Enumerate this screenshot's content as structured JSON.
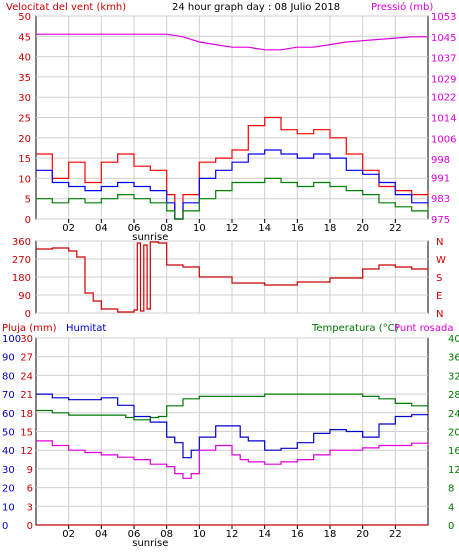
{
  "chart_data": [
    {
      "type": "line",
      "panel": "wind-pressure",
      "title": "24 hour graph day : 08 Julio 2018",
      "ylabel_left": "Velocitat del vent (kmh)",
      "ylabel_right": "Pressió (mb)",
      "x_tick_labels": [
        "02",
        "04",
        "06",
        "08",
        "10",
        "12",
        "14",
        "16",
        "18",
        "20",
        "22"
      ],
      "x_annotation": "sunrise",
      "ylim_left": [
        0,
        50
      ],
      "y_ticks_left": [
        0,
        5,
        10,
        15,
        20,
        25,
        30,
        35,
        40,
        45,
        50
      ],
      "ylim_right": [
        975,
        1053
      ],
      "y_ticks_right": [
        975,
        983,
        991,
        998,
        1006,
        1014,
        1022,
        1029,
        1037,
        1045,
        1053
      ],
      "grid": true,
      "series": [
        {
          "key": "gust",
          "axis": "left",
          "color": "#ff0000",
          "x": [
            0,
            1,
            2,
            3,
            4,
            5,
            6,
            7,
            8,
            8.5,
            9,
            10,
            11,
            12,
            13,
            14,
            15,
            16,
            17,
            18,
            19,
            20,
            21,
            22,
            23,
            24
          ],
          "values": [
            16,
            10,
            14,
            9,
            14,
            16,
            13,
            12,
            6,
            0,
            6,
            14,
            15,
            17,
            23,
            25,
            22,
            21,
            22,
            20,
            16,
            12,
            8,
            7,
            6,
            7
          ]
        },
        {
          "key": "average",
          "axis": "left",
          "color": "#0000ff",
          "x": [
            0,
            1,
            2,
            3,
            4,
            5,
            6,
            7,
            8,
            8.5,
            9,
            10,
            11,
            12,
            13,
            14,
            15,
            16,
            17,
            18,
            19,
            20,
            21,
            22,
            23,
            24
          ],
          "values": [
            12,
            9,
            8,
            7,
            8,
            9,
            8,
            7,
            4,
            0,
            4,
            10,
            12,
            14,
            16,
            17,
            16,
            15,
            16,
            15,
            12,
            11,
            9,
            6,
            4,
            5
          ]
        },
        {
          "key": "low",
          "axis": "left",
          "color": "#008000",
          "x": [
            0,
            1,
            2,
            3,
            4,
            5,
            6,
            7,
            8,
            8.5,
            9,
            10,
            11,
            12,
            13,
            14,
            15,
            16,
            17,
            18,
            19,
            20,
            21,
            22,
            23,
            24
          ],
          "values": [
            5,
            4,
            5,
            4,
            5,
            6,
            5,
            4,
            2,
            0,
            2,
            5,
            7,
            9,
            9,
            10,
            9,
            8,
            9,
            8,
            7,
            6,
            4,
            3,
            2,
            3
          ]
        },
        {
          "key": "pressure",
          "axis": "right",
          "color": "#dd00dd",
          "x": [
            0,
            2,
            4,
            6,
            8,
            9,
            10,
            11,
            12,
            13,
            14,
            15,
            16,
            17,
            18,
            19,
            20,
            21,
            22,
            23,
            24
          ],
          "values": [
            1046,
            1046,
            1046,
            1046,
            1046,
            1045,
            1043,
            1042,
            1041,
            1041,
            1040,
            1040,
            1041,
            1041,
            1042,
            1043,
            1043.5,
            1044,
            1044.5,
            1045,
            1045
          ]
        }
      ]
    },
    {
      "type": "line",
      "panel": "wind-direction",
      "y_ticks": [
        0,
        90,
        180,
        270,
        360
      ],
      "ylim": [
        0,
        360
      ],
      "compass_labels": [
        "N",
        "W",
        "S",
        "E",
        "N"
      ],
      "grid": true,
      "series": [
        {
          "key": "direction",
          "color": "#cc0000",
          "x": [
            0,
            1,
            2,
            2.5,
            3,
            3.5,
            4,
            5,
            6,
            6.2,
            6.4,
            6.6,
            6.8,
            7,
            7.5,
            8,
            9,
            10,
            12,
            14,
            16,
            18,
            20,
            21,
            22,
            23,
            24
          ],
          "values": [
            320,
            325,
            310,
            280,
            100,
            60,
            20,
            5,
            15,
            350,
            10,
            340,
            20,
            355,
            350,
            240,
            230,
            180,
            150,
            140,
            155,
            175,
            220,
            240,
            230,
            220,
            225
          ]
        }
      ]
    },
    {
      "type": "line",
      "panel": "rain-humidity-temperature",
      "ylabel_left_1": "Pluja (mm)",
      "ylabel_left_2": "Humitat",
      "ylabel_right": "Temperatura (°C)",
      "ylabel_right_2": "Punt rosada",
      "x_tick_labels": [
        "02",
        "04",
        "06",
        "08",
        "10",
        "12",
        "14",
        "16",
        "18",
        "20",
        "22"
      ],
      "x_annotation": "sunrise",
      "ylim_rain": [
        0,
        30
      ],
      "y_ticks_rain": [
        0,
        3,
        6,
        9,
        12,
        15,
        18,
        21,
        24,
        27,
        30
      ],
      "ylim_humidity": [
        0,
        100
      ],
      "y_ticks_humidity": [
        0,
        10,
        20,
        30,
        40,
        50,
        60,
        70,
        80,
        90,
        100
      ],
      "ylim_temperature": [
        0,
        40
      ],
      "y_ticks_temperature": [
        0,
        4,
        8,
        12,
        16,
        20,
        24,
        28,
        32,
        36,
        40
      ],
      "grid": true,
      "series": [
        {
          "key": "humidity",
          "axis": "humidity",
          "color": "#0000cc",
          "x": [
            0,
            1,
            2,
            3,
            4,
            5,
            6,
            7,
            8,
            8.5,
            9,
            9.5,
            10,
            11,
            12,
            12.5,
            13,
            14,
            15,
            16,
            17,
            18,
            19,
            20,
            21,
            22,
            23,
            24
          ],
          "values": [
            70,
            68,
            67,
            67,
            68,
            64,
            58,
            55,
            47,
            44,
            36,
            40,
            47,
            53,
            53,
            47,
            45,
            40,
            41,
            44,
            49,
            51,
            50,
            47,
            54,
            58,
            59,
            59
          ]
        },
        {
          "key": "temperature",
          "axis": "temperature",
          "color": "#007700",
          "x": [
            0,
            1,
            2,
            3,
            4,
            5,
            5.5,
            6,
            7,
            7.5,
            8,
            9,
            10,
            12,
            14,
            16,
            18,
            20,
            21,
            22,
            23,
            24
          ],
          "values": [
            24.5,
            24,
            23.5,
            23.5,
            23.5,
            23.5,
            23,
            22.5,
            23,
            23.2,
            25.5,
            27,
            27.5,
            27.5,
            28,
            28,
            28,
            27.5,
            27,
            26,
            25.5,
            25.5
          ]
        },
        {
          "key": "dewpoint",
          "axis": "temperature",
          "color": "#dd00dd",
          "x": [
            0,
            1,
            2,
            3,
            4,
            5,
            6,
            7,
            8,
            8.5,
            9,
            9.5,
            10,
            11,
            12,
            12.5,
            13,
            14,
            15,
            16,
            17,
            18,
            19,
            20,
            21,
            22,
            23,
            24
          ],
          "values": [
            18,
            17,
            16,
            15.5,
            15,
            14.5,
            14,
            13,
            12.5,
            11,
            10,
            11,
            16,
            17,
            15,
            14,
            13.5,
            13,
            13.5,
            14,
            15,
            16,
            16,
            16.5,
            17,
            17,
            17.5,
            17
          ]
        },
        {
          "key": "rain",
          "axis": "rain",
          "color": "#cc0000",
          "x": [
            0,
            24
          ],
          "values": [
            0,
            0
          ]
        }
      ]
    }
  ]
}
